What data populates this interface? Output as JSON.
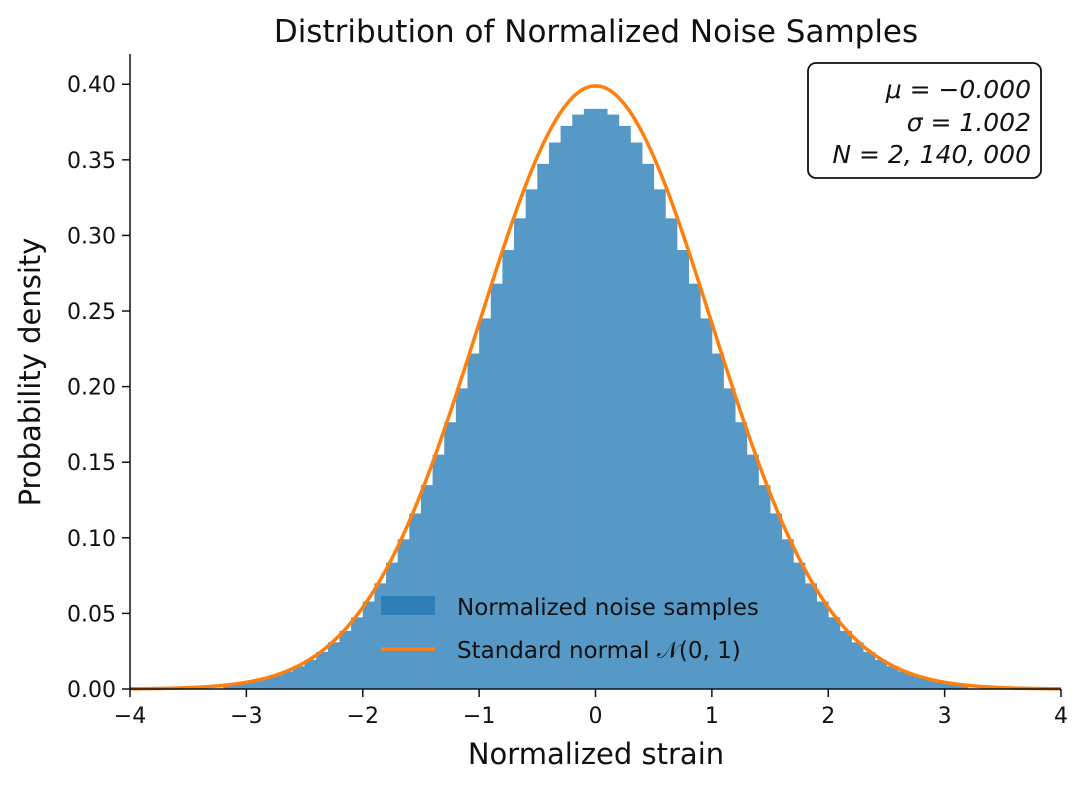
{
  "chart_data": {
    "type": "histogram",
    "title": "Distribution of Normalized Noise Samples",
    "xlabel": "Normalized strain",
    "ylabel": "Probability density",
    "xlim": [
      -4,
      4
    ],
    "ylim": [
      0,
      0.42
    ],
    "x_ticks": [
      -4,
      -3,
      -2,
      -1,
      0,
      1,
      2,
      3,
      4
    ],
    "x_tick_labels": [
      "−4",
      "−3",
      "−2",
      "−1",
      "0",
      "1",
      "2",
      "3",
      "4"
    ],
    "y_ticks": [
      0.0,
      0.05,
      0.1,
      0.15,
      0.2,
      0.25,
      0.3,
      0.35,
      0.4
    ],
    "y_tick_labels": [
      "0.00",
      "0.05",
      "0.10",
      "0.15",
      "0.20",
      "0.25",
      "0.30",
      "0.35",
      "0.40"
    ],
    "grid": false,
    "histogram": {
      "name": "Normalized noise samples",
      "color": "#5799c6",
      "legend_color": "#2e7fb8",
      "bin_width": 0.1,
      "bin_range": [
        -3.2,
        3.2
      ],
      "sample_mean": 0.0,
      "sample_std": 1.002,
      "peak_density": 0.384,
      "density_scale": 0.965
    },
    "curve": {
      "name": "Standard normal 𝒩(0, 1)",
      "color": "#ff7f0e",
      "mean": 0,
      "std": 1,
      "x_range": [
        -4,
        4
      ]
    },
    "legend": {
      "location": "lower-center",
      "entries": [
        "Normalized noise samples",
        "Standard normal 𝒩(0, 1)"
      ]
    },
    "stats_box": {
      "location": "top-right",
      "lines": [
        "μ = −0.000",
        "σ = 1.002",
        "N = 2, 140, 000"
      ]
    }
  }
}
